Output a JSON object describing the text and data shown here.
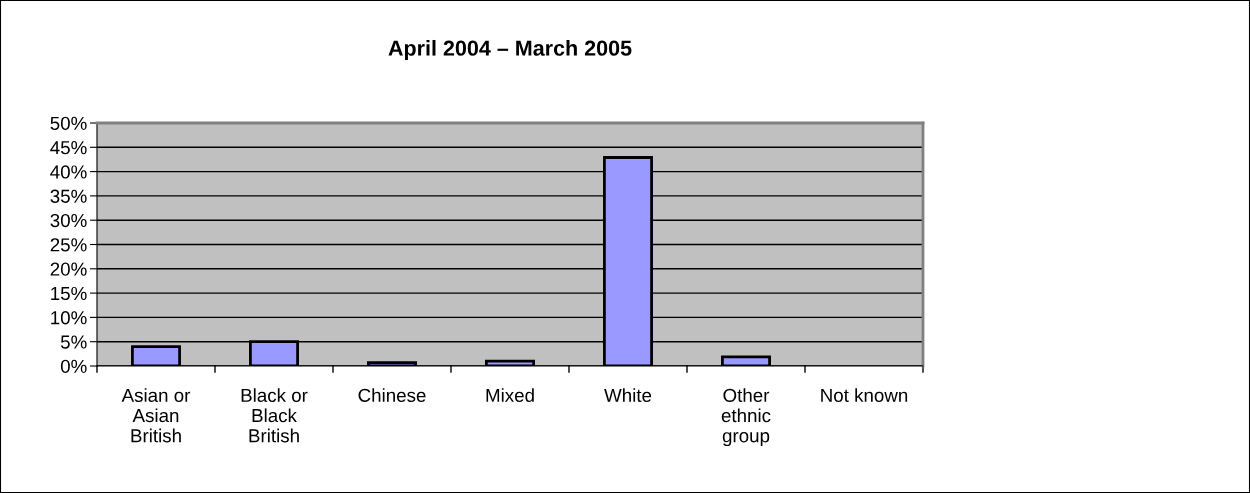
{
  "chart_data": {
    "type": "bar",
    "title": "April 2004 – March 2005",
    "categories": [
      "Asian or\nAsian\nBritish",
      "Black or\nBlack\nBritish",
      "Chinese",
      "Mixed",
      "White",
      "Other\nethnic\ngroup",
      "Not known"
    ],
    "values": [
      4,
      5,
      0.7,
      1,
      42.9,
      1.9,
      0
    ],
    "color": "#9999ff",
    "ylim": [
      0,
      50
    ],
    "yticks": [
      {
        "value": 0,
        "label": "0%"
      },
      {
        "value": 5,
        "label": "5%"
      },
      {
        "value": 10,
        "label": "10%"
      },
      {
        "value": 15,
        "label": "15%"
      },
      {
        "value": 20,
        "label": "20%"
      },
      {
        "value": 25,
        "label": "25%"
      },
      {
        "value": 30,
        "label": "30%"
      },
      {
        "value": 35,
        "label": "35%"
      },
      {
        "value": 40,
        "label": "40%"
      },
      {
        "value": 45,
        "label": "45%"
      },
      {
        "value": 50,
        "label": "50%"
      }
    ],
    "grid": "y",
    "legend": false
  }
}
